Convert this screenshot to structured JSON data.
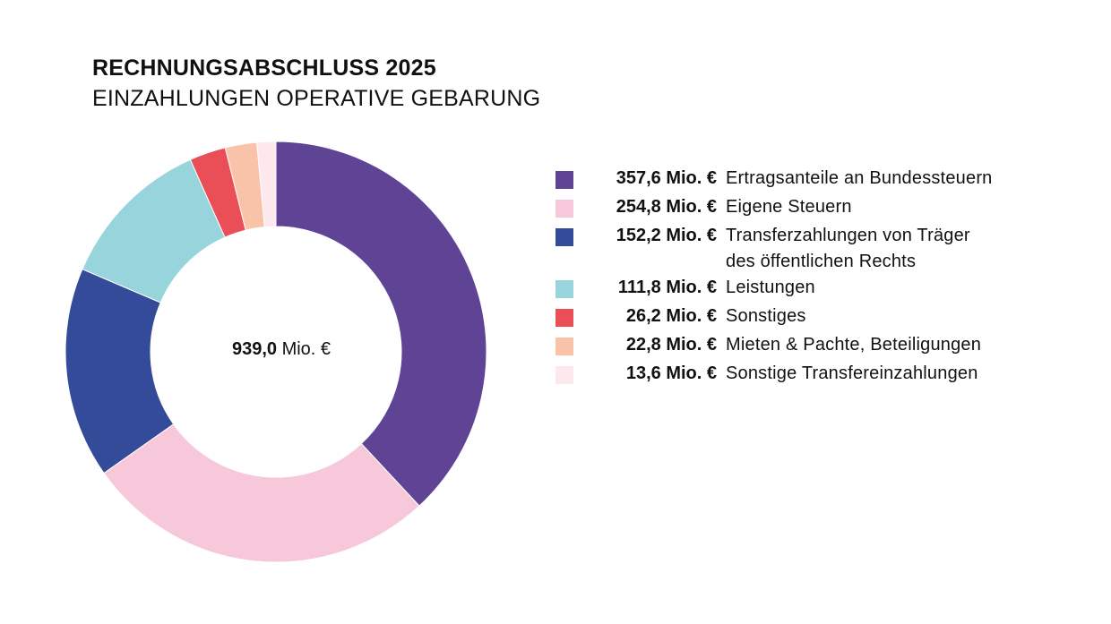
{
  "header": {
    "title": "RECHNUNGSABSCHLUSS 2025",
    "subtitle": "EINZAHLUNGEN OPERATIVE GEBARUNG"
  },
  "center": {
    "total_value": "939,0",
    "total_unit": "Mio. €"
  },
  "chart_data": {
    "type": "pie",
    "title": "RECHNUNGSABSCHLUSS 2025",
    "subtitle": "EINZAHLUNGEN OPERATIVE GEBARUNG",
    "total": 939.0,
    "unit": "Mio. €",
    "categories": [
      "Ertragsanteile an Bundessteuern",
      "Eigene Steuern",
      "Transferzahlungen von Träger des öffentlichen Rechts",
      "Leistungen",
      "Sonstiges",
      "Mieten & Pachte, Beteiligungen",
      "Sonstige Transfereinzahlungen"
    ],
    "values": [
      357.6,
      254.8,
      152.2,
      111.8,
      26.2,
      22.8,
      13.6
    ],
    "colors": [
      "#5f4496",
      "#f7c8da",
      "#344b9a",
      "#97d4dc",
      "#ea4f58",
      "#f9c3a9",
      "#fde8ee"
    ],
    "legend_position": "right",
    "donut": true
  },
  "legend": [
    {
      "value": "357,6 Mio. €",
      "label": "Ertragsanteile an Bundessteuern",
      "color": "#5f4496"
    },
    {
      "value": "254,8 Mio. €",
      "label": "Eigene Steuern",
      "color": "#f7c8da"
    },
    {
      "value": "152,2 Mio. €",
      "label": "Transferzahlungen von Träger des öffentlichen Rechts",
      "color": "#344b9a"
    },
    {
      "value": "111,8 Mio. €",
      "label": "Leistungen",
      "color": "#97d4dc"
    },
    {
      "value": "26,2 Mio. €",
      "label": "Sonstiges",
      "color": "#ea4f58"
    },
    {
      "value": "22,8 Mio. €",
      "label": "Mieten & Pachte, Beteiligungen",
      "color": "#f9c3a9"
    },
    {
      "value": "13,6 Mio. €",
      "label": "Sonstige Transfereinzahlungen",
      "color": "#fde8ee"
    }
  ]
}
